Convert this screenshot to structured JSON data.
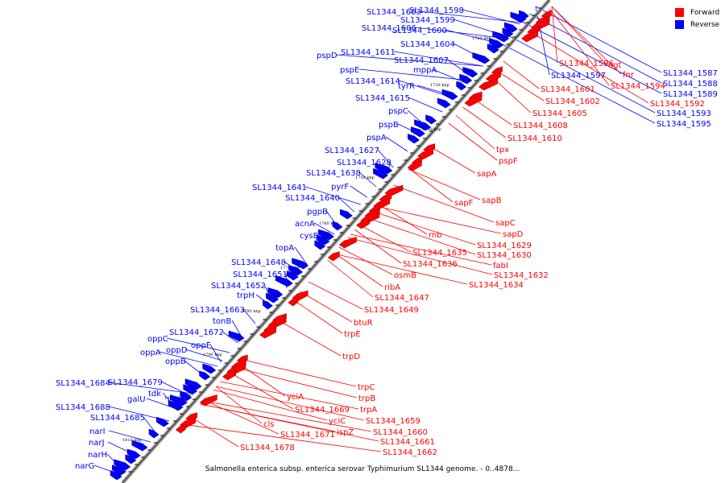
{
  "legend": {
    "forward": {
      "label": "Forward",
      "color": "#ff0000"
    },
    "reverse": {
      "label": "Reverse",
      "color": "#0000ff"
    }
  },
  "caption": "Salmonella enterica subsp. enterica serovar Typhimurium SL1344 genome. - 0..4878...",
  "ticks": [
    "1720 kbp",
    "1730 kbp",
    "1740 kbp",
    "1750 kbp",
    "1760 kbp",
    "1770 kbp",
    "1780 kbp",
    "1790 kbp",
    "1800 kbp",
    "1810 kbp"
  ],
  "genes": {
    "reverse": [
      "SL1344_1603",
      "SL1344_1598",
      "SL1344_1599",
      "SL1344_1606",
      "SL1344_1600",
      "SL1344_1604",
      "pspD",
      "SL1344_1611",
      "SL1344_1607",
      "pspE",
      "mppA",
      "SL1344_1614",
      "tyrR",
      "SL1344_1615",
      "pspC",
      "pspB",
      "pspA",
      "SL1344_1627",
      "SL1344_1628",
      "SL1344_1638",
      "SL1344_1641",
      "pyrF",
      "SL1344_1640",
      "pgpB",
      "acnA",
      "cysB",
      "topA",
      "SL1344_1648",
      "SL1344_1651",
      "SL1344_1652",
      "trpH",
      "SL1344_1663",
      "tonB",
      "SL1344_1672",
      "oppC",
      "oppF",
      "oppD",
      "oppA",
      "oppB",
      "SL1344_1684",
      "SL1344_1679",
      "tdk",
      "galU",
      "SL1344_1688",
      "SL1344_1685",
      "narI",
      "narJ",
      "narH",
      "narG",
      "SL1344_1587",
      "SL1344_1588",
      "SL1344_1589",
      "SL1344_1597",
      "SL1344_1593",
      "SL1344_1595"
    ],
    "forward": [
      "SL1344_1596",
      "ogt",
      "fnr",
      "SL1344_1594",
      "SL1344_1601",
      "SL1344_1602",
      "SL1344_1592",
      "SL1344_1605",
      "SL1344_1608",
      "SL1344_1610",
      "tpx",
      "pspF",
      "sapA",
      "sapB",
      "sapF",
      "sapC",
      "sapD",
      "rnb",
      "SL1344_1629",
      "SL1344_1630",
      "SL1344_1635",
      "fabI",
      "SL1344_1636",
      "SL1344_1632",
      "osmB",
      "SL1344_1634",
      "ribA",
      "SL1344_1647",
      "SL1344_1649",
      "btuR",
      "trpE",
      "trpD",
      "trpC",
      "trpB",
      "yciA",
      "SL1344_1669",
      "trpA",
      "yciC",
      "SL1344_1659",
      "cls",
      "ispZ",
      "SL1344_1660",
      "SL1344_1671",
      "SL1344_1661",
      "SL1344_1662",
      "SL1344_1678"
    ]
  }
}
